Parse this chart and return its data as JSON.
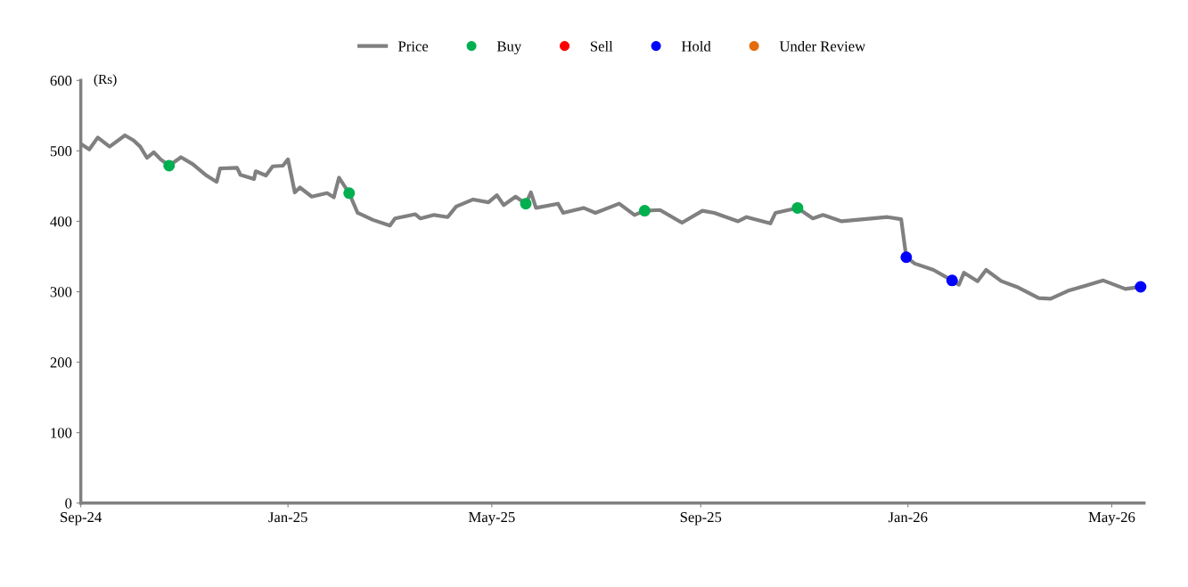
{
  "chart_data": {
    "type": "line",
    "ylabel": "(Rs)",
    "legend": "top",
    "grid": false,
    "xlim": [
      "2024-09-01",
      "2026-05-20"
    ],
    "ylim": [
      0,
      600
    ],
    "yticks": [
      0,
      100,
      200,
      300,
      400,
      500,
      600
    ],
    "xticks": [
      {
        "value": "2024-09-01",
        "label": "Sep-24"
      },
      {
        "value": "2025-01-01",
        "label": "Jan-25"
      },
      {
        "value": "2025-05-01",
        "label": "May-25"
      },
      {
        "value": "2025-09-01",
        "label": "Sep-25"
      },
      {
        "value": "2026-01-01",
        "label": "Jan-26"
      },
      {
        "value": "2026-05-01",
        "label": "May-26"
      }
    ],
    "series": [
      {
        "name": "Price",
        "color": "#808080",
        "marker": "none",
        "x": [
          "2024-09-01",
          "2024-09-06",
          "2024-09-11",
          "2024-09-18",
          "2024-09-27",
          "2024-10-02",
          "2024-10-06",
          "2024-10-10",
          "2024-10-14",
          "2024-10-18",
          "2024-10-23",
          "2024-10-30",
          "2024-11-06",
          "2024-11-14",
          "2024-11-20",
          "2024-11-22",
          "2024-12-02",
          "2024-12-04",
          "2024-12-12",
          "2024-12-13",
          "2024-12-19",
          "2024-12-23",
          "2024-12-29",
          "2025-01-01",
          "2025-01-05",
          "2025-01-08",
          "2025-01-15",
          "2025-01-24",
          "2025-01-28",
          "2025-01-31",
          "2025-02-06",
          "2025-02-11",
          "2025-02-20",
          "2025-03-02",
          "2025-03-05",
          "2025-03-17",
          "2025-03-20",
          "2025-03-28",
          "2025-04-05",
          "2025-04-10",
          "2025-04-20",
          "2025-04-29",
          "2025-05-04",
          "2025-05-08",
          "2025-05-15",
          "2025-05-21",
          "2025-05-24",
          "2025-05-27",
          "2025-06-09",
          "2025-06-12",
          "2025-06-24",
          "2025-07-01",
          "2025-07-15",
          "2025-07-24",
          "2025-07-30",
          "2025-08-08",
          "2025-08-21",
          "2025-09-02",
          "2025-09-09",
          "2025-09-23",
          "2025-09-28",
          "2025-10-12",
          "2025-10-15",
          "2025-10-28",
          "2025-11-06",
          "2025-11-12",
          "2025-11-23",
          "2025-12-20",
          "2025-12-28",
          "2025-12-31",
          "2026-01-05",
          "2026-01-16",
          "2026-01-27",
          "2026-01-31",
          "2026-02-03",
          "2026-02-11",
          "2026-02-16",
          "2026-02-25",
          "2026-03-07",
          "2026-03-19",
          "2026-03-26",
          "2026-04-06",
          "2026-04-16",
          "2026-04-26",
          "2026-05-09",
          "2026-05-18"
        ],
        "values": [
          510,
          502,
          519,
          506,
          522,
          515,
          506,
          490,
          498,
          488,
          479,
          491,
          481,
          465,
          456,
          475,
          476,
          466,
          460,
          471,
          465,
          478,
          479,
          488,
          441,
          448,
          435,
          440,
          434,
          462,
          440,
          412,
          402,
          394,
          404,
          410,
          404,
          409,
          406,
          421,
          431,
          427,
          437,
          423,
          435,
          425,
          441,
          419,
          425,
          412,
          419,
          412,
          425,
          409,
          415,
          416,
          398,
          415,
          412,
          400,
          406,
          397,
          412,
          419,
          404,
          409,
          400,
          406,
          403,
          349,
          340,
          331,
          316,
          310,
          327,
          315,
          331,
          315,
          306,
          291,
          290,
          302,
          309,
          316,
          304,
          307
        ]
      },
      {
        "name": "Buy",
        "type": "scatter",
        "color": "#00b050",
        "marker": "circle",
        "x": [
          "2024-10-23",
          "2025-02-06",
          "2025-05-21",
          "2025-07-30",
          "2025-10-28"
        ],
        "values": [
          479,
          440,
          425,
          415,
          419
        ]
      },
      {
        "name": "Sell",
        "type": "scatter",
        "color": "#ff0000",
        "marker": "circle"
      },
      {
        "name": "Hold",
        "type": "scatter",
        "color": "#0000ff",
        "marker": "circle",
        "x": [
          "2025-12-31",
          "2026-01-27",
          "2026-05-18"
        ],
        "values": [
          349,
          316,
          307
        ]
      },
      {
        "name": "Under Review",
        "type": "scatter",
        "color": "#e46c0a",
        "marker": "circle"
      }
    ]
  }
}
